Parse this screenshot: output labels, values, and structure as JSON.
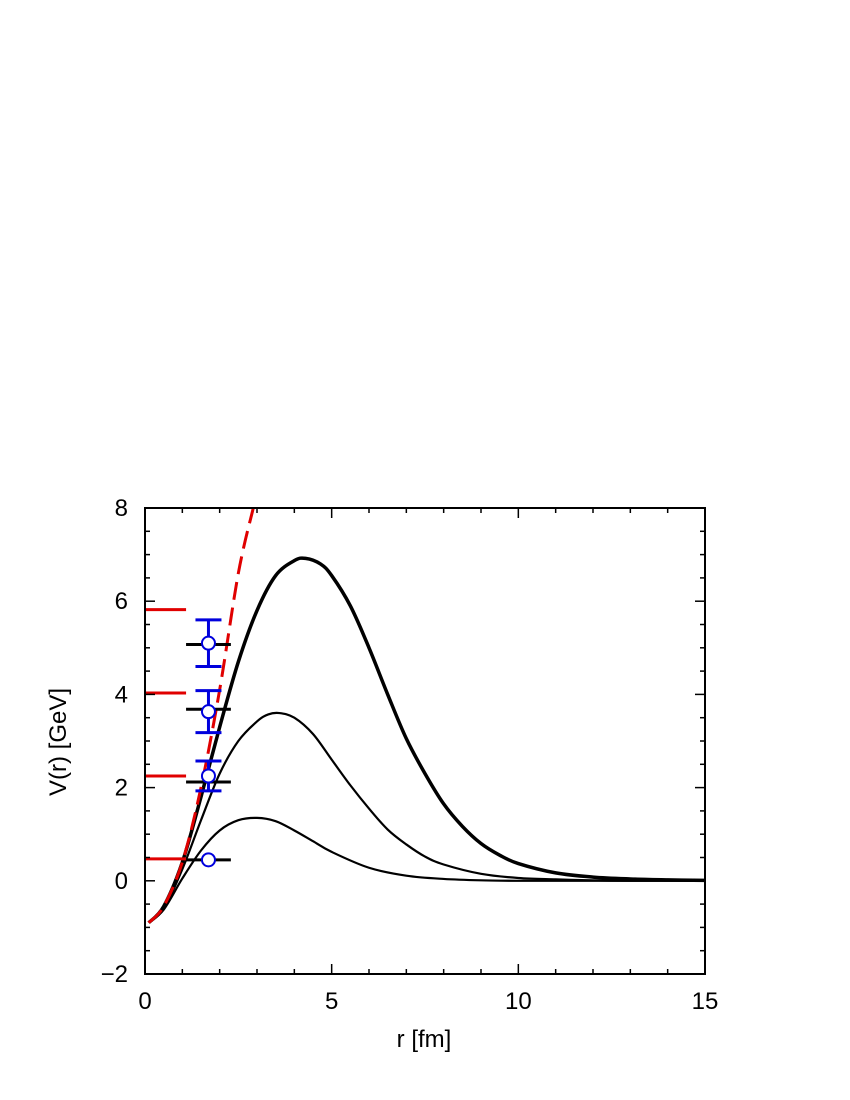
{
  "chart_data": {
    "type": "line",
    "title": "",
    "xlabel": "r  [fm]",
    "ylabel": "V(r)   [GeV]",
    "xlim": [
      0,
      15
    ],
    "ylim": [
      -2,
      8
    ],
    "x_ticks": [
      "0",
      "5",
      "10",
      "15"
    ],
    "y_ticks": [
      "−2",
      "0",
      "2",
      "4",
      "6",
      "8"
    ],
    "grid": false,
    "legend": "none",
    "series": [
      {
        "style": "solid-thick",
        "color": "#000000",
        "x": [
          0.1,
          0.5,
          1.0,
          1.5,
          2.0,
          2.5,
          3.0,
          3.5,
          4.0,
          4.3,
          4.7,
          5.0,
          5.5,
          6.0,
          6.5,
          7.0,
          7.5,
          8.0,
          8.5,
          9.0,
          9.5,
          10.0,
          11.0,
          12.0,
          13.0,
          14.0,
          15.0
        ],
        "y": [
          -0.9,
          -0.55,
          0.4,
          1.8,
          3.3,
          4.7,
          5.8,
          6.55,
          6.87,
          6.92,
          6.8,
          6.55,
          5.9,
          5.0,
          4.0,
          3.05,
          2.3,
          1.65,
          1.17,
          0.8,
          0.55,
          0.37,
          0.17,
          0.08,
          0.04,
          0.02,
          0.01
        ]
      },
      {
        "style": "solid",
        "color": "#000000",
        "x": [
          0.1,
          0.5,
          1.0,
          1.5,
          2.0,
          2.5,
          3.0,
          3.3,
          3.6,
          4.0,
          4.5,
          5.0,
          5.5,
          6.0,
          6.5,
          7.0,
          7.5,
          8.0,
          9.0,
          10.0,
          11.0,
          12.0,
          13.0,
          14.0,
          15.0
        ],
        "y": [
          -0.9,
          -0.6,
          0.25,
          1.3,
          2.3,
          3.0,
          3.42,
          3.57,
          3.6,
          3.5,
          3.15,
          2.6,
          2.05,
          1.55,
          1.1,
          0.78,
          0.52,
          0.35,
          0.15,
          0.06,
          0.03,
          0.01,
          0.0,
          0.0,
          0.0
        ]
      },
      {
        "style": "solid",
        "color": "#000000",
        "x": [
          0.1,
          0.5,
          1.0,
          1.5,
          2.0,
          2.5,
          3.0,
          3.5,
          4.0,
          4.5,
          5.0,
          6.0,
          7.0,
          8.0,
          9.0,
          10.0,
          11.0,
          12.0,
          13.0,
          14.0,
          15.0
        ],
        "y": [
          -0.9,
          -0.62,
          0.05,
          0.65,
          1.08,
          1.3,
          1.35,
          1.28,
          1.08,
          0.85,
          0.62,
          0.28,
          0.11,
          0.04,
          0.01,
          0.0,
          0.0,
          0.0,
          0.0,
          0.0,
          0.0
        ]
      },
      {
        "style": "dashed",
        "color": "#e00000",
        "x": [
          0.1,
          0.5,
          1.0,
          1.5,
          2.0,
          2.5,
          2.9
        ],
        "y": [
          -0.9,
          -0.55,
          0.4,
          2.0,
          4.1,
          6.6,
          8.0
        ]
      }
    ],
    "level_markers": {
      "color": "#e00000",
      "x_range": [
        0,
        1.1
      ],
      "y": [
        0.47,
        2.25,
        4.03,
        5.82
      ]
    },
    "points_black": {
      "color": "#000000",
      "x": [
        1.7,
        1.7,
        1.7,
        1.7
      ],
      "y": [
        0.45,
        2.12,
        3.68,
        5.07
      ],
      "x_err": [
        0.6,
        0.6,
        0.6,
        0.6
      ]
    },
    "points_blue": {
      "color": "#0000dd",
      "x": [
        1.7,
        1.7,
        1.7,
        1.7
      ],
      "y": [
        0.45,
        2.25,
        3.63,
        5.1
      ],
      "y_err": [
        0.0,
        0.32,
        0.45,
        0.5
      ]
    }
  }
}
